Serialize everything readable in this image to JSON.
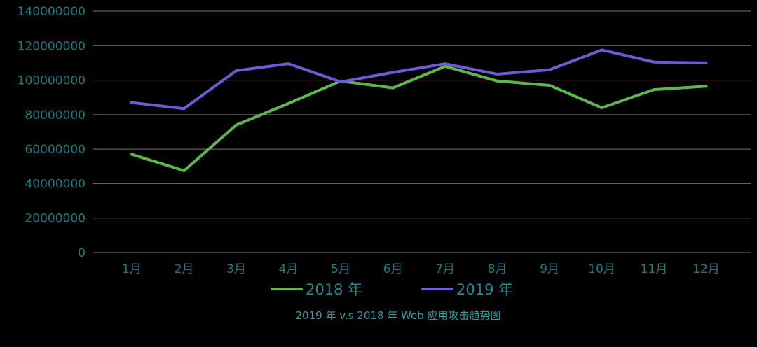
{
  "chart_data": {
    "type": "line",
    "title": "2019 年 v.s 2018 年 Web 应用攻击趋势图",
    "xlabel": "",
    "ylabel": "",
    "categories": [
      "1月",
      "2月",
      "3月",
      "4月",
      "5月",
      "6月",
      "7月",
      "8月",
      "9月",
      "10月",
      "11月",
      "12月"
    ],
    "ylim": [
      0,
      140000000
    ],
    "yticks": [
      0,
      20000000,
      40000000,
      60000000,
      80000000,
      100000000,
      120000000,
      140000000
    ],
    "ytick_labels": [
      "0",
      "20000000",
      "40000000",
      "60000000",
      "80000000",
      "100000000",
      "120000000",
      "140000000"
    ],
    "grid": true,
    "legend_position": "bottom",
    "series": [
      {
        "name": "2018 年",
        "color": "#5cb84a",
        "values": [
          57000000,
          47500000,
          74000000,
          86500000,
          99500000,
          95500000,
          108000000,
          99500000,
          97000000,
          84000000,
          94500000,
          96500000
        ]
      },
      {
        "name": "2019 年",
        "color": "#7159d6",
        "values": [
          87000000,
          83500000,
          105500000,
          109500000,
          99000000,
          104500000,
          109500000,
          103500000,
          106000000,
          117500000,
          110500000,
          110000000
        ]
      }
    ],
    "colors": {
      "background": "#000000",
      "grid": "#8a6a72",
      "tick_text": "#1a7a80",
      "legend_text": "#1f8a90",
      "caption_text": "#2aa0a6"
    }
  }
}
